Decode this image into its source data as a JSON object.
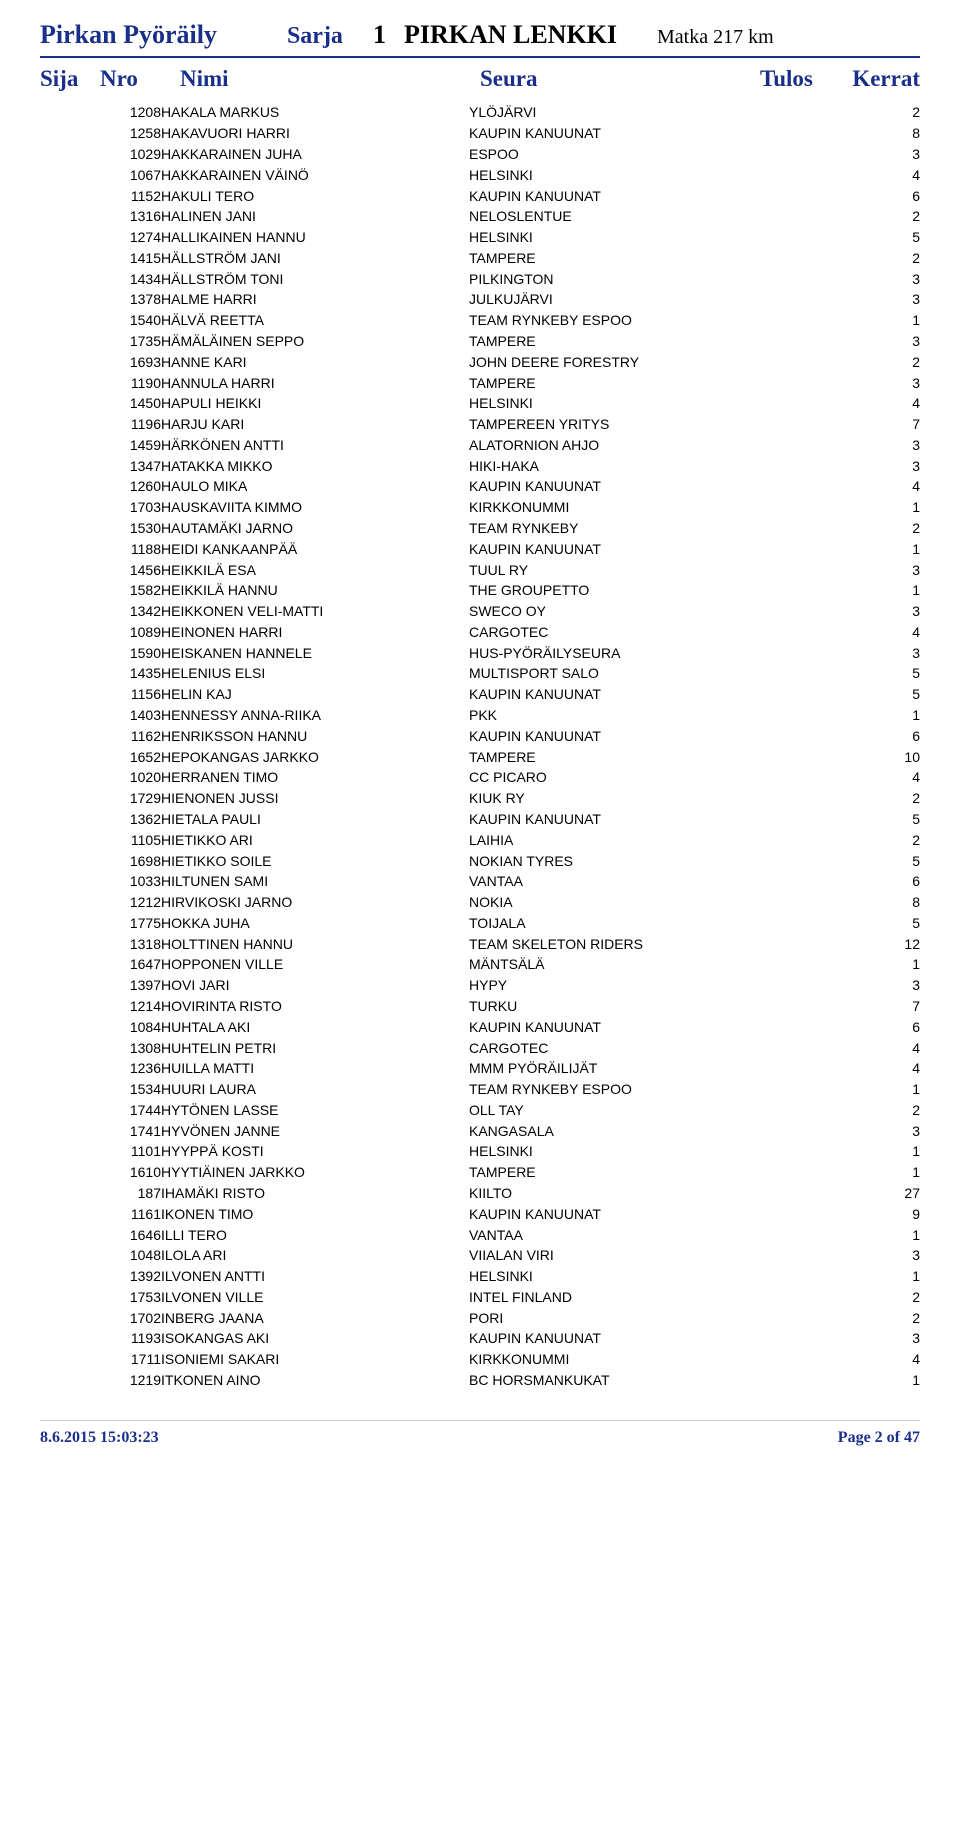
{
  "header": {
    "title": "Pirkan Pyöräily",
    "sarja_label": "Sarja",
    "sarja_num": "1",
    "lenkki": "PIRKAN LENKKI",
    "matka": "Matka 217 km"
  },
  "columns": {
    "sija": "Sija",
    "nro": "Nro",
    "nimi": "Nimi",
    "seura": "Seura",
    "tulos": "Tulos",
    "kerrat": "Kerrat"
  },
  "rows": [
    {
      "nro": "1208",
      "nimi": "HAKALA MARKUS",
      "seura": "YLÖJÄRVI",
      "kerrat": "2"
    },
    {
      "nro": "1258",
      "nimi": "HAKAVUORI HARRI",
      "seura": "KAUPIN KANUUNAT",
      "kerrat": "8"
    },
    {
      "nro": "1029",
      "nimi": "HAKKARAINEN JUHA",
      "seura": "ESPOO",
      "kerrat": "3"
    },
    {
      "nro": "1067",
      "nimi": "HAKKARAINEN VÄINÖ",
      "seura": "HELSINKI",
      "kerrat": "4"
    },
    {
      "nro": "1152",
      "nimi": "HAKULI TERO",
      "seura": "KAUPIN KANUUNAT",
      "kerrat": "6"
    },
    {
      "nro": "1316",
      "nimi": "HALINEN JANI",
      "seura": "NELOSLENTUE",
      "kerrat": "2"
    },
    {
      "nro": "1274",
      "nimi": "HALLIKAINEN HANNU",
      "seura": "HELSINKI",
      "kerrat": "5"
    },
    {
      "nro": "1415",
      "nimi": "HÄLLSTRÖM JANI",
      "seura": "TAMPERE",
      "kerrat": "2"
    },
    {
      "nro": "1434",
      "nimi": "HÄLLSTRÖM TONI",
      "seura": "PILKINGTON",
      "kerrat": "3"
    },
    {
      "nro": "1378",
      "nimi": "HALME HARRI",
      "seura": "JULKUJÄRVI",
      "kerrat": "3"
    },
    {
      "nro": "1540",
      "nimi": "HÄLVÄ REETTA",
      "seura": "TEAM RYNKEBY ESPOO",
      "kerrat": "1"
    },
    {
      "nro": "1735",
      "nimi": "HÄMÄLÄINEN SEPPO",
      "seura": "TAMPERE",
      "kerrat": "3"
    },
    {
      "nro": "1693",
      "nimi": "HANNE KARI",
      "seura": "JOHN DEERE FORESTRY",
      "kerrat": "2"
    },
    {
      "nro": "1190",
      "nimi": "HANNULA HARRI",
      "seura": "TAMPERE",
      "kerrat": "3"
    },
    {
      "nro": "1450",
      "nimi": "HAPULI HEIKKI",
      "seura": "HELSINKI",
      "kerrat": "4"
    },
    {
      "nro": "1196",
      "nimi": "HARJU KARI",
      "seura": "TAMPEREEN YRITYS",
      "kerrat": "7"
    },
    {
      "nro": "1459",
      "nimi": "HÄRKÖNEN ANTTI",
      "seura": "ALATORNION AHJO",
      "kerrat": "3"
    },
    {
      "nro": "1347",
      "nimi": "HATAKKA MIKKO",
      "seura": "HIKI-HAKA",
      "kerrat": "3"
    },
    {
      "nro": "1260",
      "nimi": "HAULO MIKA",
      "seura": "KAUPIN KANUUNAT",
      "kerrat": "4"
    },
    {
      "nro": "1703",
      "nimi": "HAUSKAVIITA KIMMO",
      "seura": "KIRKKONUMMI",
      "kerrat": "1"
    },
    {
      "nro": "1530",
      "nimi": "HAUTAMÄKI JARNO",
      "seura": "TEAM RYNKEBY",
      "kerrat": "2"
    },
    {
      "nro": "1188",
      "nimi": "HEIDI KANKAANPÄÄ",
      "seura": "KAUPIN KANUUNAT",
      "kerrat": "1"
    },
    {
      "nro": "1456",
      "nimi": "HEIKKILÄ ESA",
      "seura": "TUUL RY",
      "kerrat": "3"
    },
    {
      "nro": "1582",
      "nimi": "HEIKKILÄ HANNU",
      "seura": "THE GROUPETTO",
      "kerrat": "1"
    },
    {
      "nro": "1342",
      "nimi": "HEIKKONEN VELI-MATTI",
      "seura": "SWECO OY",
      "kerrat": "3"
    },
    {
      "nro": "1089",
      "nimi": "HEINONEN HARRI",
      "seura": "CARGOTEC",
      "kerrat": "4"
    },
    {
      "nro": "1590",
      "nimi": "HEISKANEN HANNELE",
      "seura": "HUS-PYÖRÄILYSEURA",
      "kerrat": "3"
    },
    {
      "nro": "1435",
      "nimi": "HELENIUS ELSI",
      "seura": "MULTISPORT SALO",
      "kerrat": "5"
    },
    {
      "nro": "1156",
      "nimi": "HELIN KAJ",
      "seura": "KAUPIN KANUUNAT",
      "kerrat": "5"
    },
    {
      "nro": "1403",
      "nimi": "HENNESSY ANNA-RIIKA",
      "seura": "PKK",
      "kerrat": "1"
    },
    {
      "nro": "1162",
      "nimi": "HENRIKSSON HANNU",
      "seura": "KAUPIN KANUUNAT",
      "kerrat": "6"
    },
    {
      "nro": "1652",
      "nimi": "HEPOKANGAS JARKKO",
      "seura": "TAMPERE",
      "kerrat": "10"
    },
    {
      "nro": "1020",
      "nimi": "HERRANEN TIMO",
      "seura": "CC PICARO",
      "kerrat": "4"
    },
    {
      "nro": "1729",
      "nimi": "HIENONEN JUSSI",
      "seura": "KIUK RY",
      "kerrat": "2"
    },
    {
      "nro": "1362",
      "nimi": "HIETALA PAULI",
      "seura": "KAUPIN KANUUNAT",
      "kerrat": "5"
    },
    {
      "nro": "1105",
      "nimi": "HIETIKKO ARI",
      "seura": "LAIHIA",
      "kerrat": "2"
    },
    {
      "nro": "1698",
      "nimi": "HIETIKKO SOILE",
      "seura": "NOKIAN TYRES",
      "kerrat": "5"
    },
    {
      "nro": "1033",
      "nimi": "HILTUNEN SAMI",
      "seura": "VANTAA",
      "kerrat": "6"
    },
    {
      "nro": "1212",
      "nimi": "HIRVIKOSKI JARNO",
      "seura": "NOKIA",
      "kerrat": "8"
    },
    {
      "nro": "1775",
      "nimi": "HOKKA JUHA",
      "seura": "TOIJALA",
      "kerrat": "5"
    },
    {
      "nro": "1318",
      "nimi": "HOLTTINEN HANNU",
      "seura": "TEAM SKELETON RIDERS",
      "kerrat": "12"
    },
    {
      "nro": "1647",
      "nimi": "HOPPONEN VILLE",
      "seura": "MÄNTSÄLÄ",
      "kerrat": "1"
    },
    {
      "nro": "1397",
      "nimi": "HOVI JARI",
      "seura": "HYPY",
      "kerrat": "3"
    },
    {
      "nro": "1214",
      "nimi": "HOVIRINTA RISTO",
      "seura": "TURKU",
      "kerrat": "7"
    },
    {
      "nro": "1084",
      "nimi": "HUHTALA AKI",
      "seura": "KAUPIN KANUUNAT",
      "kerrat": "6"
    },
    {
      "nro": "1308",
      "nimi": "HUHTELIN PETRI",
      "seura": "CARGOTEC",
      "kerrat": "4"
    },
    {
      "nro": "1236",
      "nimi": "HUILLA MATTI",
      "seura": "MMM PYÖRÄILIJÄT",
      "kerrat": "4"
    },
    {
      "nro": "1534",
      "nimi": "HUURI LAURA",
      "seura": "TEAM RYNKEBY ESPOO",
      "kerrat": "1"
    },
    {
      "nro": "1744",
      "nimi": "HYTÖNEN LASSE",
      "seura": "OLL TAY",
      "kerrat": "2"
    },
    {
      "nro": "1741",
      "nimi": "HYVÖNEN JANNE",
      "seura": "KANGASALA",
      "kerrat": "3"
    },
    {
      "nro": "1101",
      "nimi": "HYYPPÄ KOSTI",
      "seura": "HELSINKI",
      "kerrat": "1"
    },
    {
      "nro": "1610",
      "nimi": "HYYTIÄINEN JARKKO",
      "seura": "TAMPERE",
      "kerrat": "1"
    },
    {
      "nro": "187",
      "nimi": "IHAMÄKI RISTO",
      "seura": "KIILTO",
      "kerrat": "27"
    },
    {
      "nro": "1161",
      "nimi": "IKONEN TIMO",
      "seura": "KAUPIN KANUUNAT",
      "kerrat": "9"
    },
    {
      "nro": "1646",
      "nimi": "ILLI TERO",
      "seura": "VANTAA",
      "kerrat": "1"
    },
    {
      "nro": "1048",
      "nimi": "ILOLA ARI",
      "seura": "VIIALAN VIRI",
      "kerrat": "3"
    },
    {
      "nro": "1392",
      "nimi": "ILVONEN ANTTI",
      "seura": "HELSINKI",
      "kerrat": "1"
    },
    {
      "nro": "1753",
      "nimi": "ILVONEN VILLE",
      "seura": "INTEL FINLAND",
      "kerrat": "2"
    },
    {
      "nro": "1702",
      "nimi": "INBERG JAANA",
      "seura": "PORI",
      "kerrat": "2"
    },
    {
      "nro": "1193",
      "nimi": "ISOKANGAS AKI",
      "seura": "KAUPIN KANUUNAT",
      "kerrat": "3"
    },
    {
      "nro": "1711",
      "nimi": "ISONIEMI SAKARI",
      "seura": "KIRKKONUMMI",
      "kerrat": "4"
    },
    {
      "nro": "1219",
      "nimi": "ITKONEN AINO",
      "seura": "BC HORSMANKUKAT",
      "kerrat": "1"
    }
  ],
  "footer": {
    "timestamp": "8.6.2015 15:03:23",
    "page": "Page 2 of 47"
  },
  "style": {
    "accent_color": "#1a2f8a",
    "text_color": "#000000",
    "background_color": "#ffffff",
    "body_font_size": 14,
    "header_font_size": 26,
    "colhead_font_size": 23
  }
}
